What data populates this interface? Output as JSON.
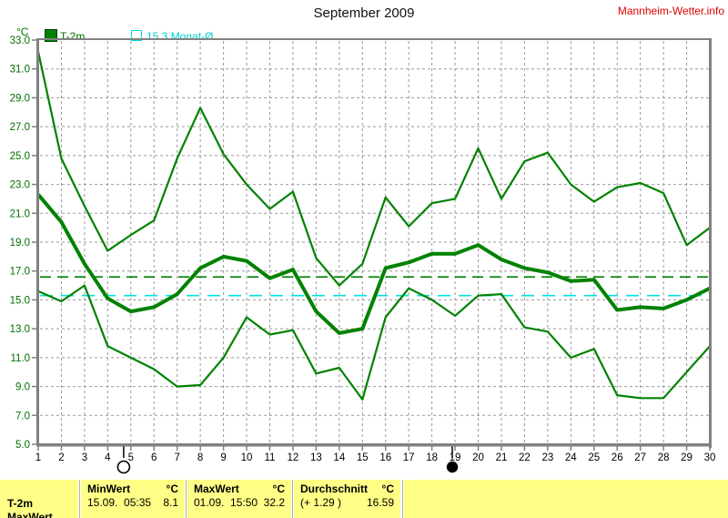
{
  "header": {
    "title": "September 2009",
    "brand": "Mannheim-Wetter.info"
  },
  "legend": {
    "unit_label": "°C",
    "t2m_label": "T-2m",
    "monat_label": "15.3 Monat-Ø"
  },
  "colors": {
    "line_green": "#008200",
    "text_green": "#007000",
    "cyan_line": "#00e2e2",
    "brand_red": "#e10000",
    "axis_gray": "#808080",
    "grid_gray": "#9a9a9a",
    "table_yellow": "#ffff87"
  },
  "chart_data": {
    "type": "line",
    "title": "September 2009",
    "ylabel": "°C",
    "ylim": [
      5,
      33
    ],
    "ytick_step": 2,
    "grid": true,
    "x": [
      1,
      2,
      3,
      4,
      5,
      6,
      7,
      8,
      9,
      10,
      11,
      12,
      13,
      14,
      15,
      16,
      17,
      18,
      19,
      20,
      21,
      22,
      23,
      24,
      25,
      26,
      27,
      28,
      29,
      30
    ],
    "series": [
      {
        "name": "T-2m daily max",
        "role": "max",
        "width": 2.2,
        "values": [
          32.2,
          24.8,
          21.5,
          18.4,
          19.5,
          20.5,
          24.8,
          28.3,
          25.1,
          23.0,
          21.3,
          22.5,
          17.9,
          16.0,
          17.5,
          22.1,
          20.1,
          21.7,
          22.0,
          25.5,
          22.0,
          24.6,
          25.2,
          23.0,
          21.8,
          22.8,
          23.1,
          22.4,
          18.8,
          20.0
        ]
      },
      {
        "name": "T-2m daily min",
        "role": "min",
        "width": 2.2,
        "values": [
          15.6,
          14.9,
          16.0,
          11.8,
          11.0,
          10.2,
          9.0,
          9.1,
          11.0,
          13.8,
          12.6,
          12.9,
          9.9,
          10.3,
          8.1,
          13.8,
          15.8,
          15.0,
          13.9,
          15.3,
          15.4,
          13.1,
          12.8,
          11.0,
          11.6,
          8.4,
          8.2,
          8.2,
          10.0,
          11.8
        ]
      },
      {
        "name": "T-2m daily mean",
        "role": "mean",
        "width": 4,
        "values": [
          22.3,
          20.4,
          17.5,
          15.1,
          14.2,
          14.5,
          15.4,
          17.2,
          18.0,
          17.7,
          16.5,
          17.1,
          14.2,
          12.7,
          13.0,
          17.2,
          17.6,
          18.2,
          18.2,
          18.8,
          17.8,
          17.2,
          16.9,
          16.3,
          16.4,
          14.3,
          14.5,
          14.4,
          15.0,
          15.8
        ]
      }
    ],
    "reference_lines": [
      {
        "name": "Durchschnitt",
        "value": 16.59,
        "color": "#008200",
        "dash": "12 7"
      },
      {
        "name": "Monat-Ø",
        "value": 15.3,
        "color": "#00e2e2",
        "dash": "14 9"
      }
    ],
    "moon_events": [
      {
        "day": 4.69,
        "phase": "full-moon",
        "symbol": "open-circle"
      },
      {
        "day": 18.88,
        "phase": "new-moon",
        "symbol": "filled-circle"
      }
    ],
    "legend_position": "top-left"
  },
  "table": {
    "row_label": "T-2m",
    "clipped_next_row_label": "MaxWert",
    "columns": [
      {
        "header": "MinWert",
        "unit": "°C",
        "value": "15.09.  05:35",
        "number": "8.1"
      },
      {
        "header": "MaxWert",
        "unit": "°C",
        "value": "01.09.  15:50",
        "number": "32.2"
      },
      {
        "header": "Durchschnitt",
        "unit": "°C",
        "value": "(+ 1.29 )",
        "number": "16.59"
      }
    ]
  }
}
